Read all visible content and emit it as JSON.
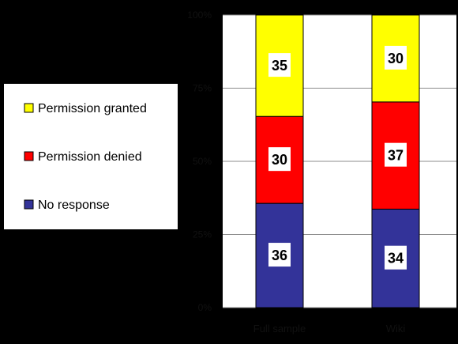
{
  "chart_data": {
    "type": "bar",
    "stacked": true,
    "percent": true,
    "categories": [
      "Full sample",
      "Wiki"
    ],
    "series": [
      {
        "name": "No response",
        "values": [
          36,
          34
        ],
        "color": "#333399"
      },
      {
        "name": "Permission denied",
        "values": [
          30,
          37
        ],
        "color": "#FF0000"
      },
      {
        "name": "Permission granted",
        "values": [
          35,
          30
        ],
        "color": "#FFFF00"
      }
    ],
    "y_ticks": [
      "0%",
      "25%",
      "50%",
      "75%",
      "100%"
    ],
    "ylim": [
      0,
      100
    ],
    "grid": true,
    "legend_position": "left",
    "title": "",
    "xlabel": "",
    "ylabel": ""
  }
}
